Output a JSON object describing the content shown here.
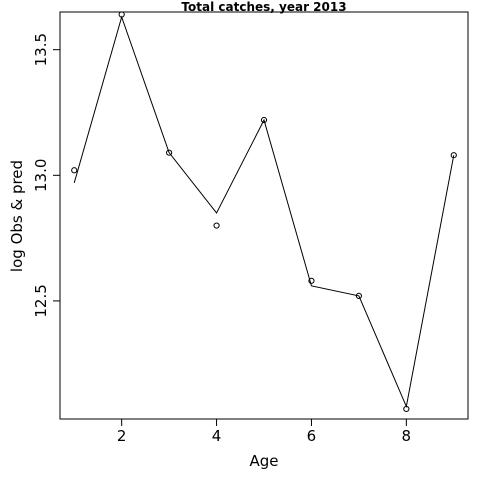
{
  "chart_data": {
    "type": "line",
    "title": "Total catches, year 2013",
    "xlabel": "Age",
    "ylabel": "log Obs & pred",
    "xlim": [
      0.7,
      9.3
    ],
    "ylim": [
      12.03,
      13.65
    ],
    "xticks": [
      2,
      4,
      6,
      8
    ],
    "yticks": [
      12.5,
      13.0,
      13.5
    ],
    "xtick_labels": [
      "2",
      "4",
      "6",
      "8"
    ],
    "ytick_labels": [
      "12.5",
      "13.0",
      "13.5"
    ],
    "grid": false,
    "x": [
      1,
      2,
      3,
      4,
      5,
      6,
      7,
      8,
      9
    ],
    "series": [
      {
        "style": "points",
        "values": [
          13.02,
          13.64,
          13.09,
          12.8,
          13.22,
          12.58,
          12.52,
          12.07,
          13.08
        ]
      },
      {
        "style": "line",
        "values": [
          12.97,
          13.63,
          13.09,
          12.85,
          13.22,
          12.56,
          12.52,
          12.08,
          13.08
        ]
      }
    ]
  }
}
